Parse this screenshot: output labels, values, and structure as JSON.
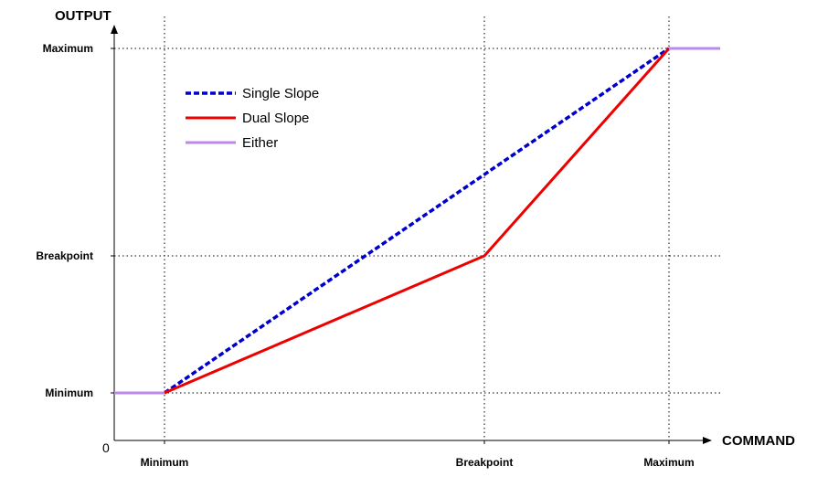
{
  "chart_data": {
    "type": "line",
    "title": "",
    "xlabel": "COMMAND",
    "ylabel": "OUTPUT",
    "origin_label": "0",
    "grid": "dotted at labeled ticks",
    "legend_position": "top-left",
    "x_ticks": [
      "Minimum",
      "Breakpoint",
      "Maximum"
    ],
    "y_ticks": [
      "Minimum",
      "Breakpoint",
      "Maximum"
    ],
    "series": [
      {
        "name": "Single Slope",
        "color": "#0000cc",
        "style": "dashed",
        "points": [
          [
            "Minimum",
            "Minimum"
          ],
          [
            "Maximum",
            "Maximum"
          ]
        ]
      },
      {
        "name": "Dual Slope",
        "color": "#ee0000",
        "style": "solid",
        "points": [
          [
            "Minimum",
            "Minimum"
          ],
          [
            "Breakpoint",
            "Breakpoint"
          ],
          [
            "Maximum",
            "Maximum"
          ]
        ]
      },
      {
        "name": "Either",
        "color": "#bb88ee",
        "style": "solid",
        "segments": [
          [
            [
              "0",
              "Minimum"
            ],
            [
              "Minimum",
              "Minimum"
            ]
          ],
          [
            [
              "Maximum",
              "Maximum"
            ],
            [
              "beyond-Maximum",
              "Maximum"
            ]
          ]
        ]
      }
    ]
  }
}
